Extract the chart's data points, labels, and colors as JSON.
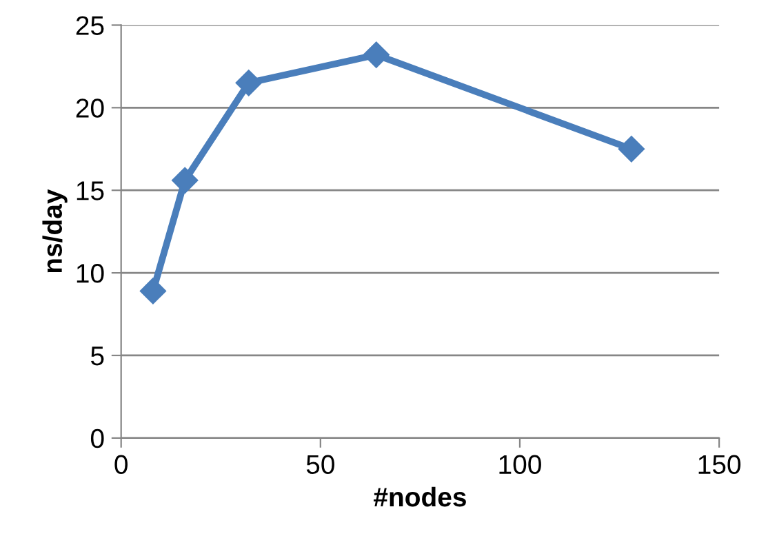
{
  "chart_data": {
    "type": "line",
    "xlabel": "#nodes",
    "ylabel": "ns/day",
    "x": [
      8,
      16,
      32,
      64,
      128
    ],
    "series": [
      {
        "color": "#4a7ebb",
        "values": [
          8.9,
          15.6,
          21.5,
          23.2,
          17.5
        ]
      }
    ],
    "xlim": [
      0,
      150
    ],
    "xticks": [
      0,
      50,
      100,
      150
    ],
    "ylim": [
      0,
      25
    ],
    "yticks": [
      0,
      5,
      10,
      15,
      20,
      25
    ],
    "grid": "y",
    "marker": "diamond",
    "line_style": "solid",
    "legend": false
  }
}
